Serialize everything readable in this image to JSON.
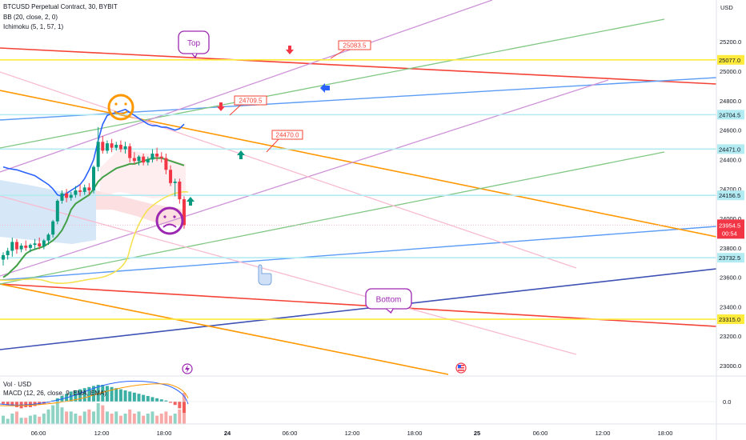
{
  "header": {
    "title": "BTCUSD Perpetual Contract, 30, BYBIT",
    "indicators": [
      "BB (20, close, 2, 0)",
      "Ichimoku (5, 1, 57, 1)"
    ],
    "volume_label": "Vol · USD",
    "macd_label": "MACD (12, 26, close, 9, EMA, EMA)"
  },
  "price_axis": {
    "unit": "USD",
    "ticks": [
      "25200.0",
      "25000.0",
      "24800.0",
      "24600.0",
      "24400.0",
      "24200.0",
      "24000.0",
      "23800.0",
      "23600.0",
      "23400.0",
      "23200.0",
      "23000.0"
    ],
    "macd_tick": "0.0"
  },
  "time_axis": {
    "ticks": [
      "06:00",
      "12:00",
      "18:00",
      "24",
      "06:00",
      "12:00",
      "18:00",
      "25",
      "06:00",
      "12:00",
      "18:00"
    ]
  },
  "price_badges": [
    {
      "label": "25077.0",
      "color": "#ffeb3b"
    },
    {
      "label": "24704.5",
      "color": "#b2ebf2"
    },
    {
      "label": "24471.0",
      "color": "#b2ebf2"
    },
    {
      "label": "24156.5",
      "color": "#b2ebf2"
    },
    {
      "label": "23732.5",
      "color": "#b2ebf2"
    },
    {
      "label": "23315.0",
      "color": "#ffeb3b"
    }
  ],
  "current_price": {
    "label": "23954.5",
    "countdown": "00:54",
    "color": "#f23645"
  },
  "callouts": {
    "top": "Top",
    "bottom": "Bottom",
    "price_a": "25083.5",
    "price_b": "24709.5",
    "price_c": "24470.0"
  },
  "colors": {
    "up": "#089981",
    "down": "#f23645",
    "bb": "#2962ff",
    "hline_yellow": "#ffeb3b",
    "hline_cyan": "#b2ebf2"
  },
  "chart_data": {
    "type": "candlestick",
    "title": "BTCUSD Perpetual Contract, 30, BYBIT",
    "ylabel": "USD",
    "ylim": [
      22960,
      25350
    ],
    "horizontal_levels": [
      25077.0,
      24704.5,
      24471.0,
      24156.5,
      23732.5,
      23315.0
    ],
    "current_price": 23954.5,
    "candles": [
      {
        "o": 23720,
        "h": 23770,
        "c": 23750,
        "l": 23680
      },
      {
        "o": 23750,
        "h": 23800,
        "c": 23780,
        "l": 23720
      },
      {
        "o": 23780,
        "h": 23870,
        "c": 23840,
        "l": 23740
      },
      {
        "o": 23840,
        "h": 23860,
        "c": 23790,
        "l": 23760
      },
      {
        "o": 23790,
        "h": 23830,
        "c": 23815,
        "l": 23770
      },
      {
        "o": 23815,
        "h": 23850,
        "c": 23800,
        "l": 23780
      },
      {
        "o": 23800,
        "h": 23830,
        "c": 23820,
        "l": 23770
      },
      {
        "o": 23820,
        "h": 23860,
        "c": 23830,
        "l": 23790
      },
      {
        "o": 23830,
        "h": 23870,
        "c": 23810,
        "l": 23790
      },
      {
        "o": 23810,
        "h": 23860,
        "c": 23850,
        "l": 23790
      },
      {
        "o": 23850,
        "h": 23900,
        "c": 23890,
        "l": 23820
      },
      {
        "o": 23890,
        "h": 23990,
        "c": 23980,
        "l": 23870
      },
      {
        "o": 23980,
        "h": 24130,
        "c": 24120,
        "l": 23960
      },
      {
        "o": 24120,
        "h": 24190,
        "c": 24170,
        "l": 24100
      },
      {
        "o": 24170,
        "h": 24200,
        "c": 24140,
        "l": 24110
      },
      {
        "o": 24140,
        "h": 24180,
        "c": 24160,
        "l": 24120
      },
      {
        "o": 24160,
        "h": 24220,
        "c": 24190,
        "l": 24140
      },
      {
        "o": 24190,
        "h": 24230,
        "c": 24180,
        "l": 24150
      },
      {
        "o": 24180,
        "h": 24230,
        "c": 24210,
        "l": 24160
      },
      {
        "o": 24210,
        "h": 24240,
        "c": 24190,
        "l": 24160
      },
      {
        "o": 24190,
        "h": 24360,
        "c": 24350,
        "l": 24170
      },
      {
        "o": 24350,
        "h": 24620,
        "c": 24520,
        "l": 24320
      },
      {
        "o": 24520,
        "h": 24560,
        "c": 24460,
        "l": 24440
      },
      {
        "o": 24460,
        "h": 24530,
        "c": 24510,
        "l": 24440
      },
      {
        "o": 24510,
        "h": 24540,
        "c": 24480,
        "l": 24450
      },
      {
        "o": 24480,
        "h": 24520,
        "c": 24500,
        "l": 24460
      },
      {
        "o": 24500,
        "h": 24530,
        "c": 24470,
        "l": 24450
      },
      {
        "o": 24470,
        "h": 24520,
        "c": 24490,
        "l": 24440
      },
      {
        "o": 24490,
        "h": 24510,
        "c": 24410,
        "l": 24380
      },
      {
        "o": 24410,
        "h": 24450,
        "c": 24390,
        "l": 24370
      },
      {
        "o": 24390,
        "h": 24430,
        "c": 24420,
        "l": 24360
      },
      {
        "o": 24420,
        "h": 24440,
        "c": 24380,
        "l": 24360
      },
      {
        "o": 24380,
        "h": 24420,
        "c": 24400,
        "l": 24360
      },
      {
        "o": 24400,
        "h": 24470,
        "c": 24440,
        "l": 24380
      },
      {
        "o": 24440,
        "h": 24480,
        "c": 24420,
        "l": 24390
      },
      {
        "o": 24420,
        "h": 24450,
        "c": 24410,
        "l": 24380
      },
      {
        "o": 24410,
        "h": 24440,
        "c": 24330,
        "l": 24300
      },
      {
        "o": 24330,
        "h": 24360,
        "c": 24240,
        "l": 24220
      },
      {
        "o": 24240,
        "h": 24270,
        "c": 24250,
        "l": 24150
      },
      {
        "o": 24250,
        "h": 24270,
        "c": 24130,
        "l": 24100
      },
      {
        "o": 24130,
        "h": 24150,
        "c": 23955,
        "l": 23930
      }
    ],
    "bollinger_upper": [
      24350,
      24340,
      24335,
      24330,
      24320,
      24310,
      24300,
      24290,
      24270,
      24250,
      24230,
      24200,
      24160,
      24150,
      24170,
      24190,
      24210,
      24230,
      24270,
      24330,
      24400,
      24530,
      24640,
      24700,
      24710,
      24720,
      24730,
      24740,
      24720,
      24700,
      24680,
      24660,
      24640,
      24630,
      24630,
      24620,
      24620,
      24610,
      24600,
      24610,
      24640
    ],
    "bollinger_lower": [
      23530,
      23520,
      23510,
      23500,
      23490,
      23480,
      23470,
      23460,
      23450,
      23450,
      23440,
      23440,
      23450,
      23460,
      23470,
      23470,
      23460,
      23460,
      23450,
      23450,
      23450,
      23450,
      23460,
      23470,
      23470,
      23480,
      23500,
      23520,
      23540,
      23560,
      23590,
      23630,
      23690,
      23750,
      23800,
      23860,
      23920,
      23970,
      24010,
      24060,
      24100
    ],
    "ichimoku_baseline": [
      23600,
      23620,
      23650,
      23680,
      23720,
      23760,
      23780,
      23790,
      23800,
      23810,
      23830,
      23850,
      23880,
      23920,
      23980,
      24060,
      24100,
      24120,
      24140,
      24160,
      24200,
      24250,
      24280,
      24300,
      24320,
      24340,
      24350,
      24360,
      24370,
      24370,
      24380,
      24390,
      24400,
      24410,
      24410,
      24410,
      24400,
      24390,
      24380,
      24370,
      24360
    ],
    "macd_histogram": [
      -2,
      -3,
      -4,
      -5,
      -6,
      -5,
      -5,
      -4,
      -3,
      -2,
      -1,
      1,
      3,
      5,
      7,
      9,
      10,
      11,
      12,
      13,
      14,
      15,
      15,
      14,
      13,
      12,
      11,
      10,
      9,
      8,
      7,
      6,
      5,
      4,
      3,
      2,
      1,
      -1,
      -3,
      -6,
      -10
    ],
    "volume": [
      8,
      5,
      10,
      12,
      6,
      6,
      8,
      9,
      7,
      10,
      14,
      18,
      22,
      16,
      12,
      12,
      10,
      8,
      12,
      14,
      12,
      20,
      18,
      12,
      10,
      12,
      8,
      10,
      14,
      10,
      12,
      8,
      10,
      12,
      8,
      10,
      12,
      8,
      10,
      14,
      30
    ]
  }
}
